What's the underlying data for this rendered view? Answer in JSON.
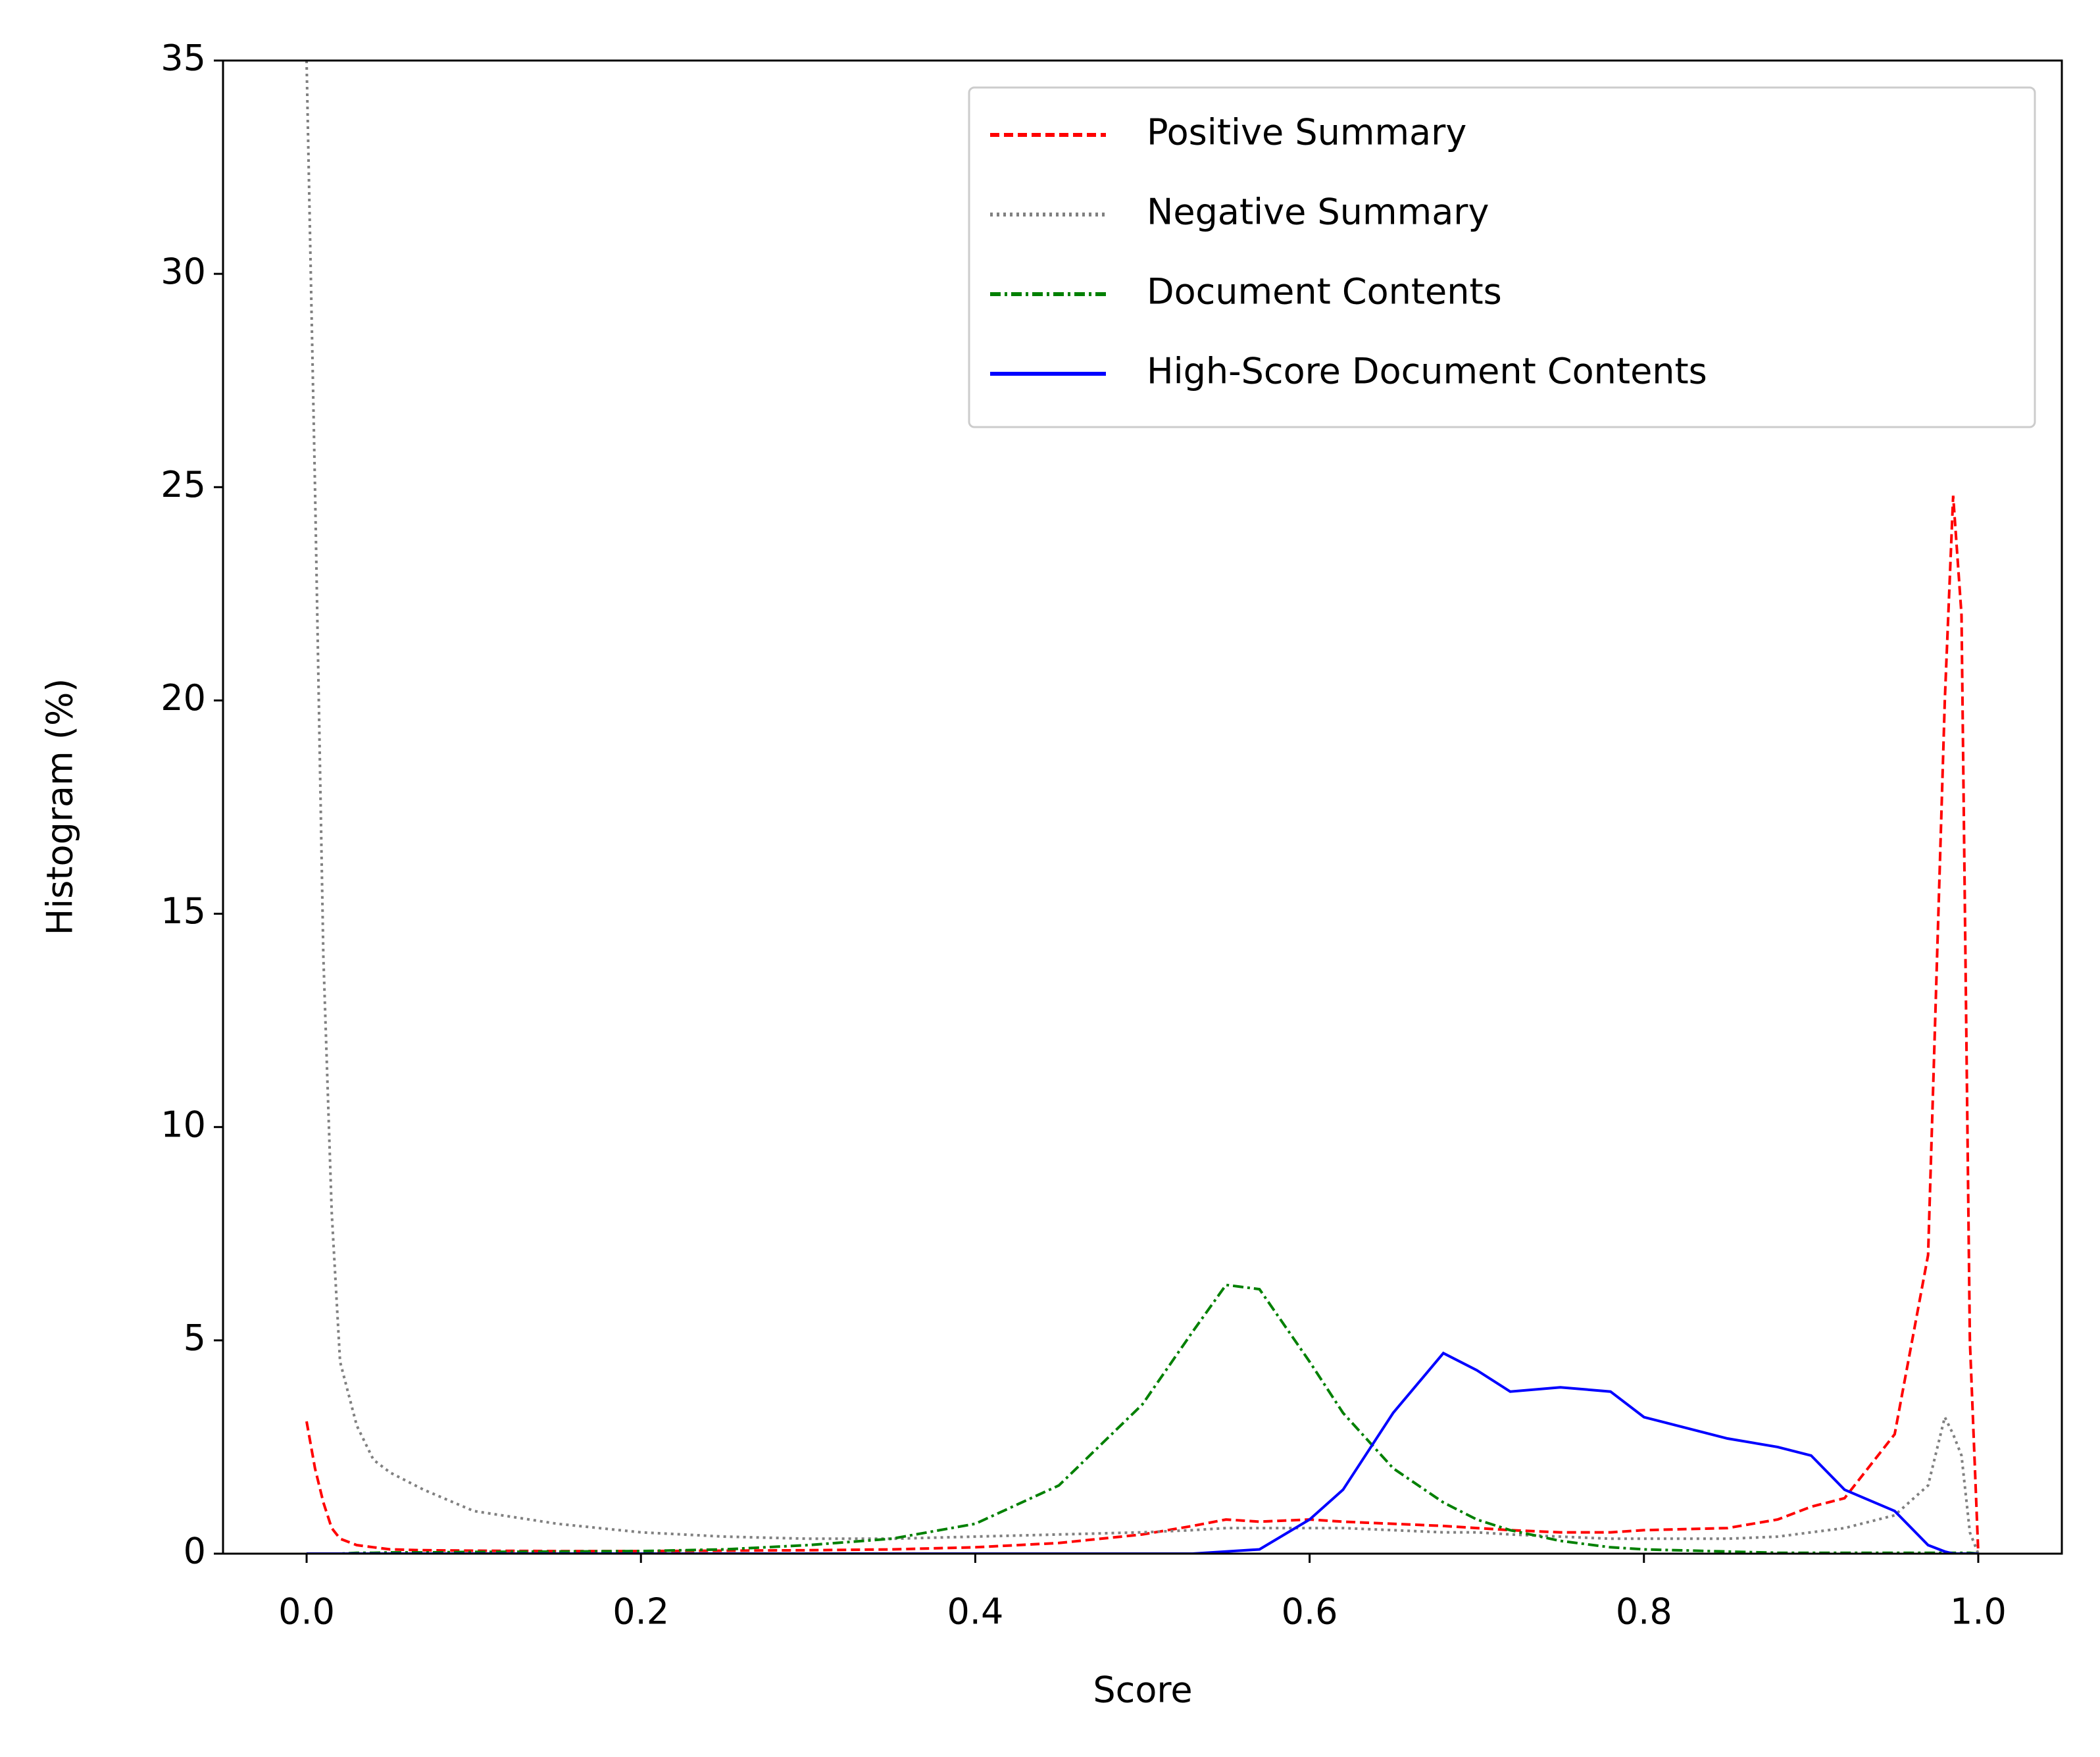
{
  "chart_data": {
    "type": "line",
    "xlabel": "Score",
    "ylabel": "Histogram (%)",
    "x": [
      0,
      0.005,
      0.01,
      0.015,
      0.02,
      0.03,
      0.04,
      0.05,
      0.07,
      0.1,
      0.15,
      0.2,
      0.25,
      0.3,
      0.35,
      0.4,
      0.45,
      0.5,
      0.53,
      0.55,
      0.57,
      0.6,
      0.62,
      0.65,
      0.68,
      0.7,
      0.72,
      0.75,
      0.78,
      0.8,
      0.85,
      0.88,
      0.9,
      0.92,
      0.95,
      0.97,
      0.98,
      0.985,
      0.99,
      0.995,
      1.0
    ],
    "series": [
      {
        "name": "Positive Summary",
        "color": "#ff0000",
        "dash": "dashed",
        "values": [
          3.1,
          2.0,
          1.2,
          0.6,
          0.35,
          0.2,
          0.15,
          0.1,
          0.08,
          0.07,
          0.06,
          0.06,
          0.07,
          0.08,
          0.1,
          0.15,
          0.25,
          0.45,
          0.65,
          0.8,
          0.75,
          0.8,
          0.75,
          0.7,
          0.65,
          0.6,
          0.55,
          0.5,
          0.5,
          0.55,
          0.6,
          0.8,
          1.1,
          1.3,
          2.8,
          7,
          20,
          24.8,
          22,
          5,
          0
        ]
      },
      {
        "name": "Negative Summary",
        "color": "#808080",
        "dash": "dotted",
        "values": [
          35,
          25,
          14,
          8,
          4.5,
          3,
          2.2,
          1.9,
          1.5,
          1.0,
          0.7,
          0.5,
          0.4,
          0.35,
          0.35,
          0.4,
          0.45,
          0.5,
          0.55,
          0.6,
          0.6,
          0.6,
          0.6,
          0.55,
          0.5,
          0.5,
          0.45,
          0.4,
          0.35,
          0.35,
          0.35,
          0.4,
          0.5,
          0.6,
          0.9,
          1.6,
          3.2,
          2.8,
          2.3,
          0.5,
          0
        ]
      },
      {
        "name": "Document Contents",
        "color": "#008000",
        "dash": "dashdot",
        "values": [
          0,
          0,
          0,
          0,
          0,
          0.02,
          0.02,
          0.03,
          0.03,
          0.04,
          0.05,
          0.06,
          0.1,
          0.2,
          0.35,
          0.7,
          1.6,
          3.5,
          5.2,
          6.3,
          6.2,
          4.5,
          3.3,
          2.0,
          1.2,
          0.8,
          0.55,
          0.3,
          0.15,
          0.1,
          0.05,
          0.02,
          0.02,
          0.02,
          0.02,
          0.02,
          0.02,
          0.02,
          0.02,
          0.02,
          0
        ]
      },
      {
        "name": "High-Score Document Contents",
        "color": "#0000ff",
        "dash": "solid",
        "values": [
          0,
          0,
          0,
          0,
          0,
          0,
          0,
          0,
          0,
          0,
          0,
          0,
          0,
          0,
          0,
          0,
          0,
          0,
          0,
          0.05,
          0.1,
          0.8,
          1.5,
          3.3,
          4.7,
          4.3,
          3.8,
          3.9,
          3.8,
          3.2,
          2.7,
          2.5,
          2.3,
          1.5,
          1.0,
          0.2,
          0.05,
          0,
          0,
          0,
          0
        ]
      }
    ],
    "xlim": [
      -0.05,
      1.05
    ],
    "xticks": [
      {
        "value": 0,
        "label": "0.0"
      },
      0.2,
      0.4,
      0.6,
      0.8,
      {
        "value": 1,
        "label": "1.0"
      }
    ],
    "ylim": [
      0,
      35
    ],
    "yticks": [
      0,
      5,
      10,
      15,
      20,
      25,
      30,
      35
    ],
    "legend": "upper right"
  }
}
